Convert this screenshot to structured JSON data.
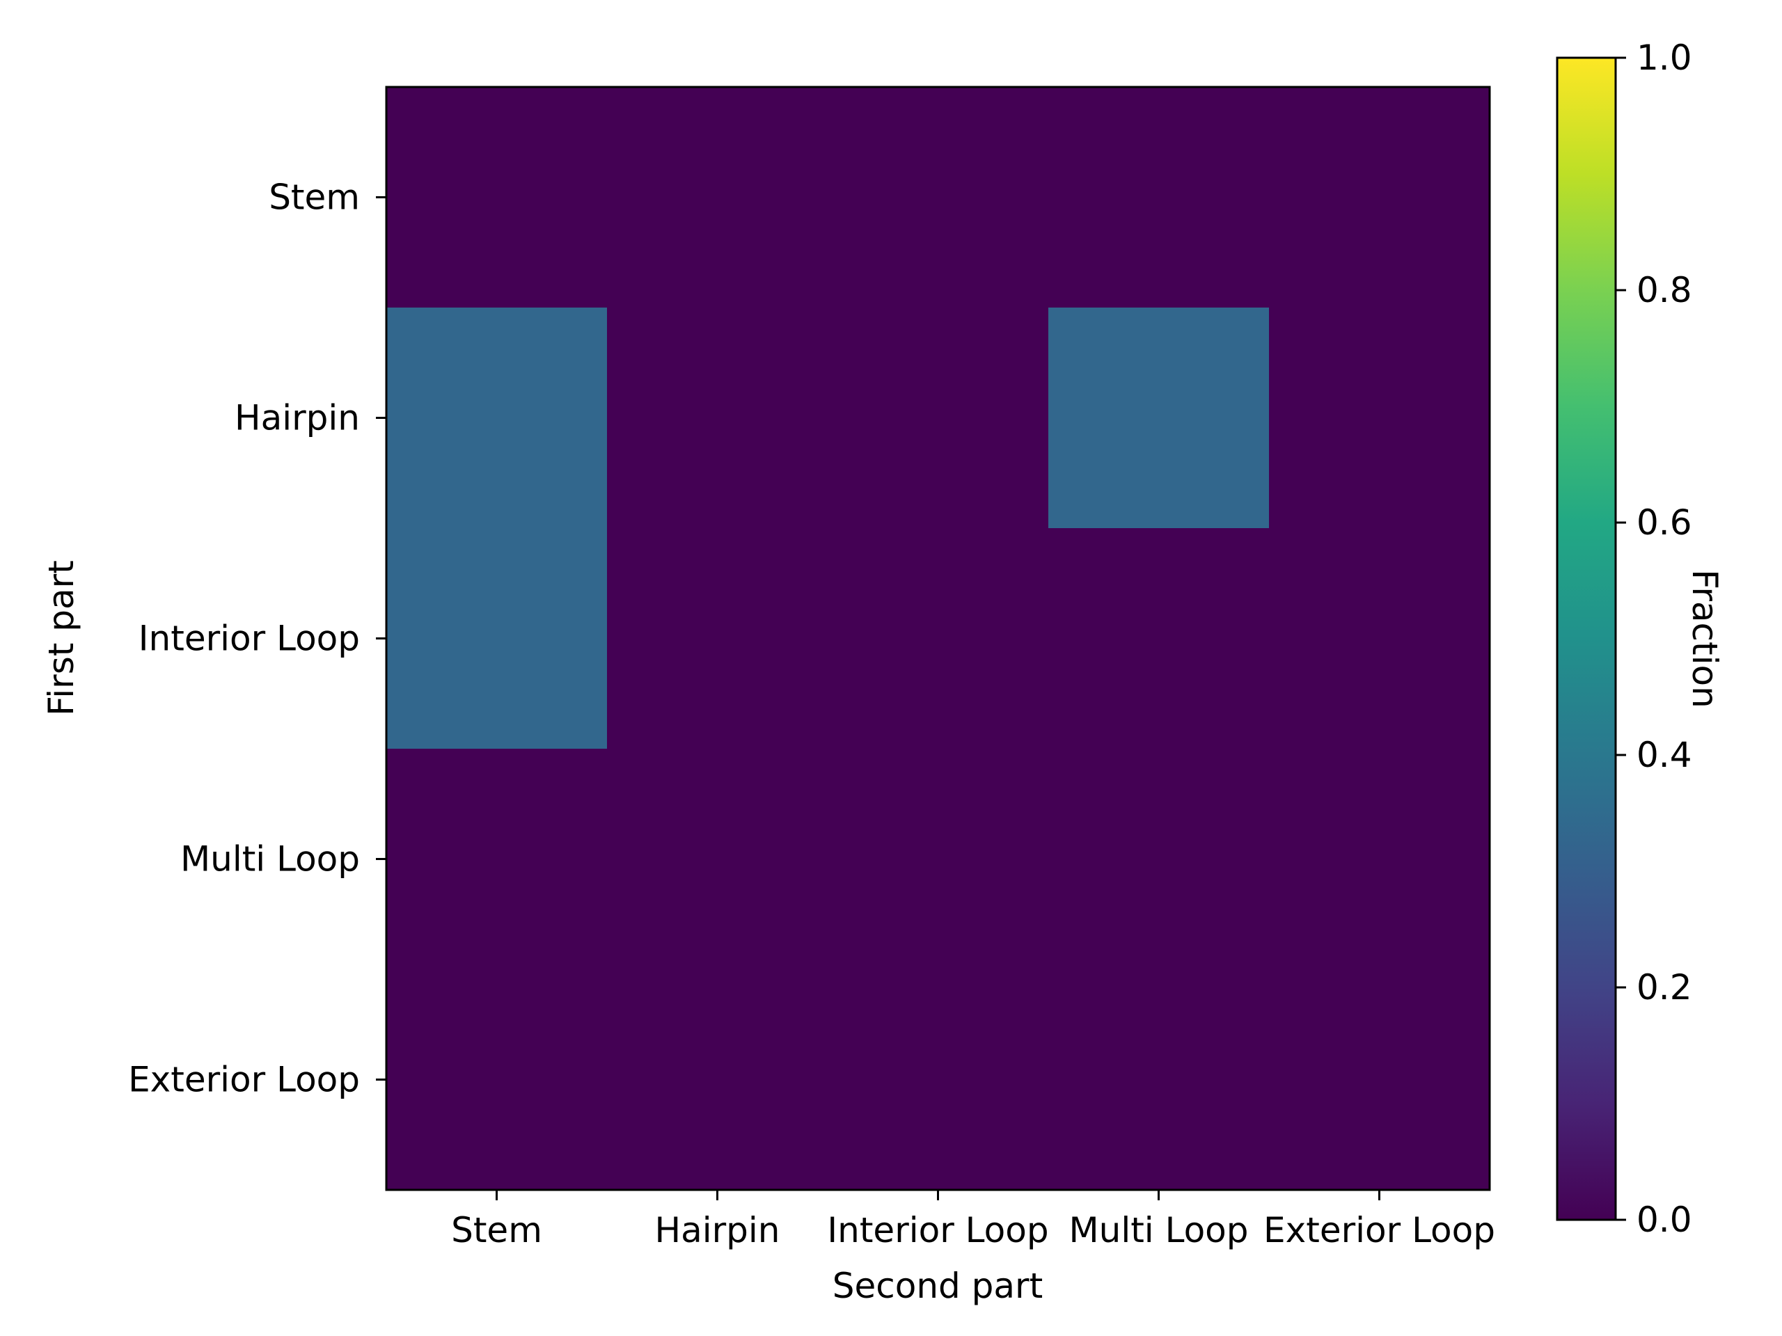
{
  "chart_data": {
    "type": "heatmap",
    "title": "",
    "xlabel": "Second part",
    "ylabel": "First part",
    "x_categories": [
      "Stem",
      "Hairpin",
      "Interior Loop",
      "Multi Loop",
      "Exterior Loop"
    ],
    "y_categories": [
      "Stem",
      "Hairpin",
      "Interior Loop",
      "Multi Loop",
      "Exterior Loop"
    ],
    "values": [
      [
        0.0,
        0.0,
        0.0,
        0.0,
        0.0
      ],
      [
        0.33,
        0.0,
        0.0,
        0.33,
        0.0
      ],
      [
        0.33,
        0.0,
        0.0,
        0.0,
        0.0
      ],
      [
        0.0,
        0.0,
        0.0,
        0.0,
        0.0
      ],
      [
        0.0,
        0.0,
        0.0,
        0.0,
        0.0
      ]
    ],
    "colormap": "viridis",
    "colorbar": {
      "label": "Fraction",
      "range": [
        0.0,
        1.0
      ],
      "ticks": [
        0.0,
        0.2,
        0.4,
        0.6,
        0.8,
        1.0
      ],
      "tick_labels": [
        "0.0",
        "0.2",
        "0.4",
        "0.6",
        "0.8",
        "1.0"
      ]
    },
    "grid": false,
    "legend": "none"
  }
}
